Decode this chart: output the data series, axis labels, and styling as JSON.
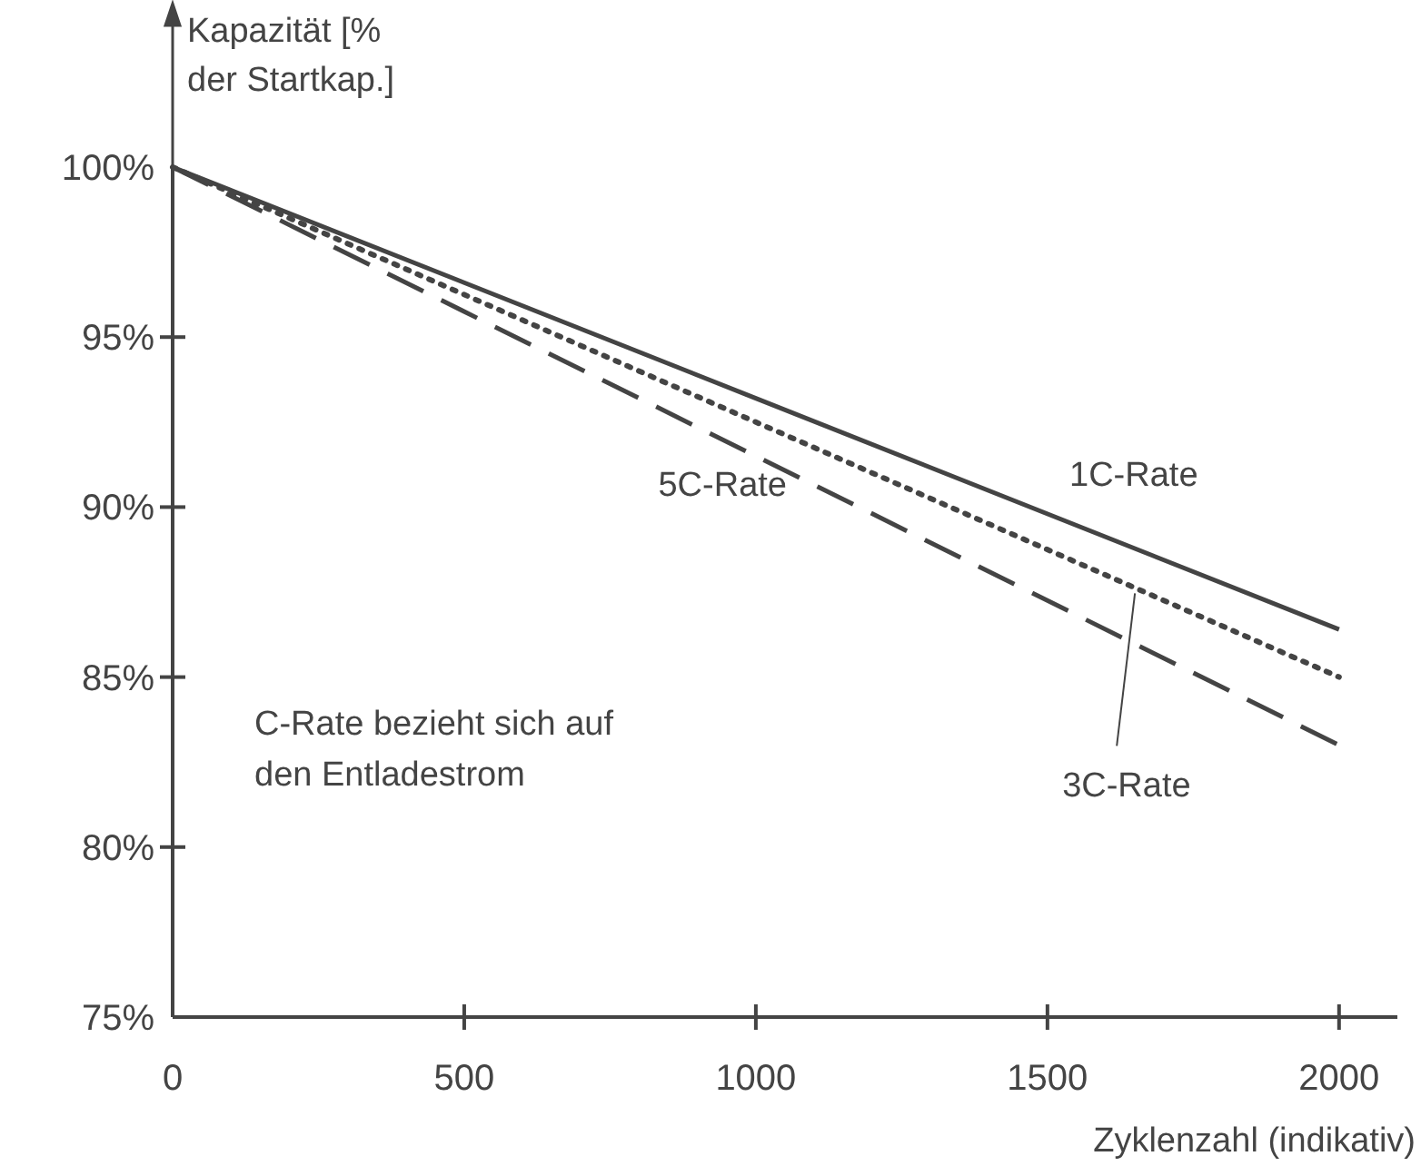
{
  "chart_data": {
    "type": "line",
    "xlabel": "Zyklenzahl (indikativ)",
    "ylabel": "Kapazität [% der Startkap.]",
    "x": [
      0,
      1000,
      2000
    ],
    "series": [
      {
        "name": "1C-Rate",
        "color": "#444444",
        "line_style": "solid",
        "values": [
          100,
          93.2,
          86.4
        ]
      },
      {
        "name": "5C-Rate",
        "color": "#444444",
        "line_style": "dashed",
        "values": [
          100,
          91.5,
          83.0
        ]
      },
      {
        "name": "3C-Rate",
        "color": "#444444",
        "line_style": "dotted",
        "values": [
          100,
          92.5,
          85.0
        ]
      }
    ],
    "xlim": [
      0,
      2100
    ],
    "xticks": [
      0,
      500,
      1000,
      1500,
      2000
    ],
    "ylim": [
      75,
      100
    ],
    "yticks": [
      {
        "value": 75,
        "label": "75%"
      },
      {
        "value": 80,
        "label": "80%"
      },
      {
        "value": 85,
        "label": "85%"
      },
      {
        "value": 90,
        "label": "90%"
      },
      {
        "value": 95,
        "label": "95%"
      },
      {
        "value": 100,
        "label": "100%"
      }
    ],
    "annotations": [
      "C-Rate bezieht sich auf den Entladestrom"
    ],
    "grid": false,
    "marker": "none"
  }
}
